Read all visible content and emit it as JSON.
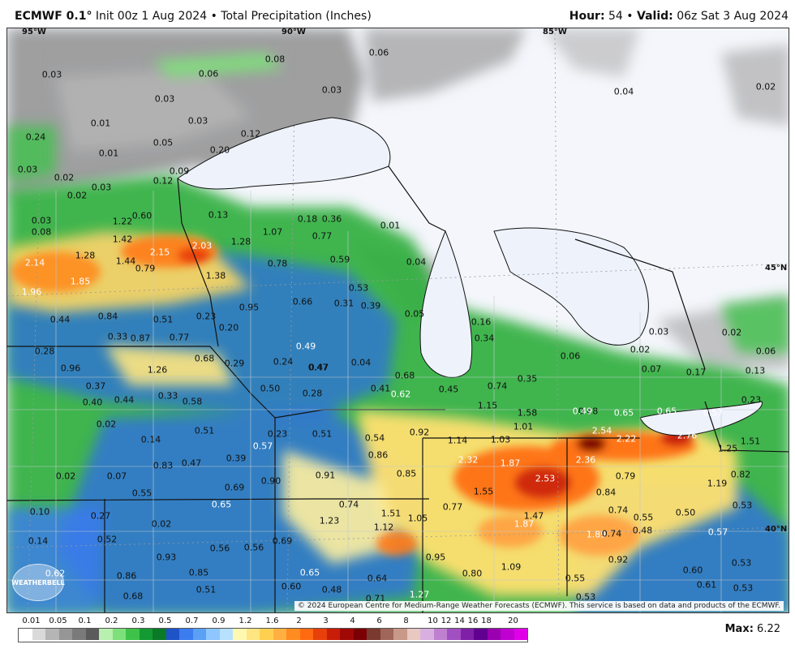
{
  "header": {
    "model": "ECMWF 0.1",
    "init": "Init 00z 1 Aug 2024",
    "field": "Total Precipitation (Inches)",
    "hour_label": "Hour:",
    "hour_value": "54",
    "valid_label": "Valid:",
    "valid_value": "06z Sat 3 Aug 2024"
  },
  "map": {
    "lon_labels": [
      "95°W",
      "90°W",
      "85°W"
    ],
    "lat_labels": [
      "45°N",
      "40°N"
    ],
    "copyright": "© 2024 European Centre for Medium-Range Weather Forecasts (ECMWF). This service is based on data and products of the ECMWF.",
    "logo_text": "WEATHERBELL",
    "values": [
      "0.08",
      "0.06",
      "0.06",
      "0.03",
      "0.03",
      "0.02",
      "0.03",
      "0.04",
      "0.12",
      "0.01",
      "0.05",
      "0.03",
      "0.24",
      "0.01",
      "0.20",
      "0.03",
      "0.02",
      "0.03",
      "0.12",
      "0.09",
      "0.02",
      "0.13",
      "0.18",
      "0.36",
      "0.01",
      "0.03",
      "1.22",
      "0.60",
      "1.07",
      "0.77",
      "1.42",
      "2.15",
      "2.03",
      "1.28",
      "0.08",
      "1.28",
      "1.44",
      "0.79",
      "0.78",
      "0.59",
      "0.04",
      "2.14",
      "1.85",
      "1.38",
      "0.53",
      "1.96",
      "0.95",
      "0.66",
      "0.31",
      "0.39",
      "0.05",
      "0.16",
      "0.84",
      "0.51",
      "0.23",
      "0.44",
      "0.20",
      "0.33",
      "0.87",
      "0.77",
      "0.34",
      "0.49",
      "0.03",
      "0.02",
      "0.28",
      "0.68",
      "0.47",
      "0.02",
      "0.06",
      "0.96",
      "1.26",
      "0.29",
      "0.24",
      "0.47",
      "0.04",
      "0.68",
      "0.07",
      "0.17",
      "0.35",
      "0.06",
      "0.13",
      "0.37",
      "0.50",
      "0.41",
      "0.74",
      "0.40",
      "0.44",
      "0.33",
      "0.58",
      "0.28",
      "0.62",
      "0.45",
      "0.68",
      "1.15",
      "1.58",
      "0.49",
      "0.65",
      "0.65",
      "0.57",
      "0.23",
      "0.02",
      "0.51",
      "0.23",
      "0.51",
      "0.54",
      "0.92",
      "1.14",
      "1.03",
      "1.01",
      "2.54",
      "2.22",
      "2.76",
      "1.51",
      "0.14",
      "0.57",
      "0.86",
      "2.32",
      "1.87",
      "2.36",
      "1.25",
      "0.39",
      "0.47",
      "0.83",
      "0.91",
      "0.85",
      "2.53",
      "0.79",
      "0.82",
      "0.02",
      "0.07",
      "0.90",
      "1.55",
      "0.84",
      "1.19",
      "0.55",
      "0.69",
      "0.74",
      "0.77",
      "0.10",
      "0.27",
      "0.65",
      "1.23",
      "1.51",
      "1.05",
      "1.47",
      "0.74",
      "0.55",
      "0.50",
      "0.53",
      "0.02",
      "1.12",
      "1.87",
      "0.48",
      "0.57",
      "0.14",
      "0.52",
      "0.56",
      "0.69",
      "1.89",
      "0.74",
      "0.93",
      "0.56",
      "0.95",
      "0.92",
      "0.62",
      "0.86",
      "0.85",
      "0.65",
      "0.80",
      "1.09",
      "0.60",
      "0.53",
      "0.68",
      "0.51",
      "0.60",
      "0.48",
      "0.64",
      "0.55",
      "0.61",
      "0.53",
      "0.71",
      "1.27",
      "0.53"
    ]
  },
  "legend": {
    "labels": [
      "0.01",
      "0.05",
      "0.1",
      "0.2",
      "0.3",
      "0.5",
      "0.7",
      "0.9",
      "1.2",
      "1.6",
      "2",
      "3",
      "4",
      "6",
      "8",
      "10",
      "12",
      "14",
      "16",
      "18",
      "20"
    ],
    "colors": [
      "#ffffff",
      "#d9d9d9",
      "#b5b5b5",
      "#969696",
      "#7a7a7a",
      "#5b5b5b",
      "#b8f0b0",
      "#7ee07a",
      "#3fc24a",
      "#139a32",
      "#0a7a26",
      "#1f53c8",
      "#3b7cf0",
      "#5aa0f5",
      "#8ec6ff",
      "#b8e0ff",
      "#fff8b0",
      "#ffe680",
      "#ffd050",
      "#ffb040",
      "#ff8c20",
      "#ff6a10",
      "#e8400a",
      "#c81e08",
      "#a00806",
      "#7a0004",
      "#7a3a2e",
      "#a0665a",
      "#c89888",
      "#e8c8c0",
      "#d8b0e0",
      "#c080d0",
      "#a050c0",
      "#8020a8",
      "#600090",
      "#9a00b0",
      "#c000d0",
      "#e000e8"
    ],
    "max_label": "Max:",
    "max_value": "6.22"
  }
}
